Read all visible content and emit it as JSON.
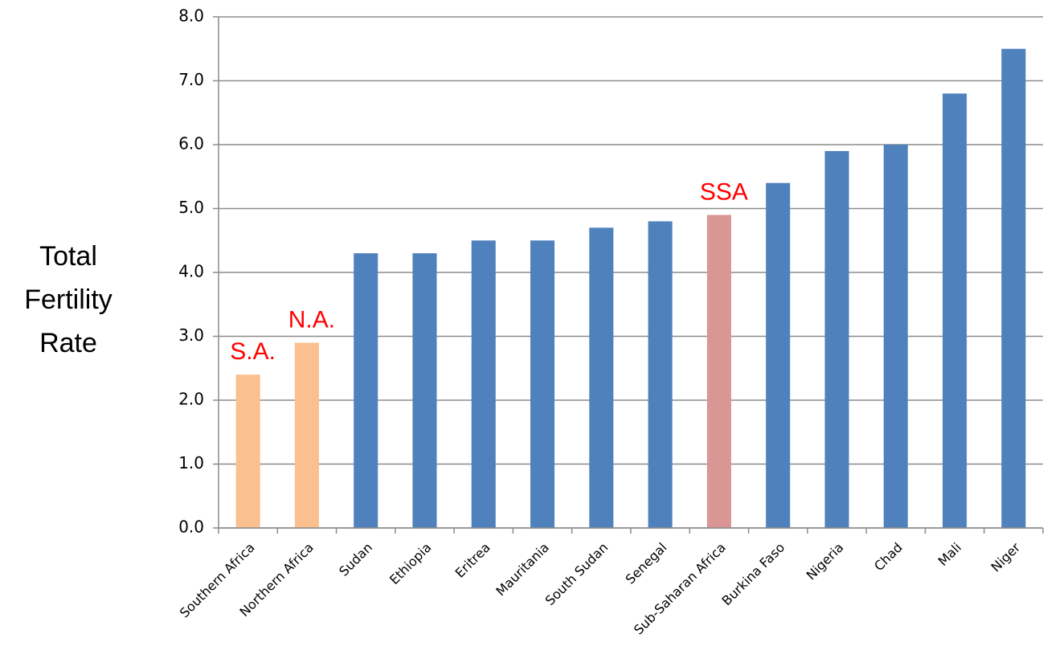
{
  "chart_data": {
    "type": "bar",
    "y_axis_label": "Total Fertility Rate",
    "categories": [
      "Southern Africa",
      "Northern Africa",
      "Sudan",
      "Ethiopia",
      "Eritrea",
      "Mauritania",
      "South Sudan",
      "Senegal",
      "Sub-Saharan Africa",
      "Burkina Faso",
      "Nigeria",
      "Chad",
      "Mali",
      "Niger"
    ],
    "values": [
      2.4,
      2.9,
      4.3,
      4.3,
      4.5,
      4.5,
      4.7,
      4.8,
      4.9,
      5.4,
      5.9,
      6.0,
      6.8,
      7.5
    ],
    "colors": [
      "#fac090",
      "#fac090",
      "#4f81bd",
      "#4f81bd",
      "#4f81bd",
      "#4f81bd",
      "#4f81bd",
      "#4f81bd",
      "#d99694",
      "#4f81bd",
      "#4f81bd",
      "#4f81bd",
      "#4f81bd",
      "#4f81bd"
    ],
    "bar_annotations": [
      "S.A.",
      "N.A.",
      null,
      null,
      null,
      null,
      null,
      null,
      "SSA",
      null,
      null,
      null,
      null,
      null
    ],
    "annotation_color": "#ff0000",
    "ylim": [
      0,
      8
    ],
    "yticks": [
      {
        "value": 0,
        "label": "0.0"
      },
      {
        "value": 1,
        "label": "1.0"
      },
      {
        "value": 2,
        "label": "2.0"
      },
      {
        "value": 3,
        "label": "3.0"
      },
      {
        "value": 4,
        "label": "4.0"
      },
      {
        "value": 5,
        "label": "5.0"
      },
      {
        "value": 6,
        "label": "6.0"
      },
      {
        "value": 7,
        "label": "7.0"
      },
      {
        "value": 8,
        "label": "8.0"
      }
    ],
    "grid": true
  }
}
